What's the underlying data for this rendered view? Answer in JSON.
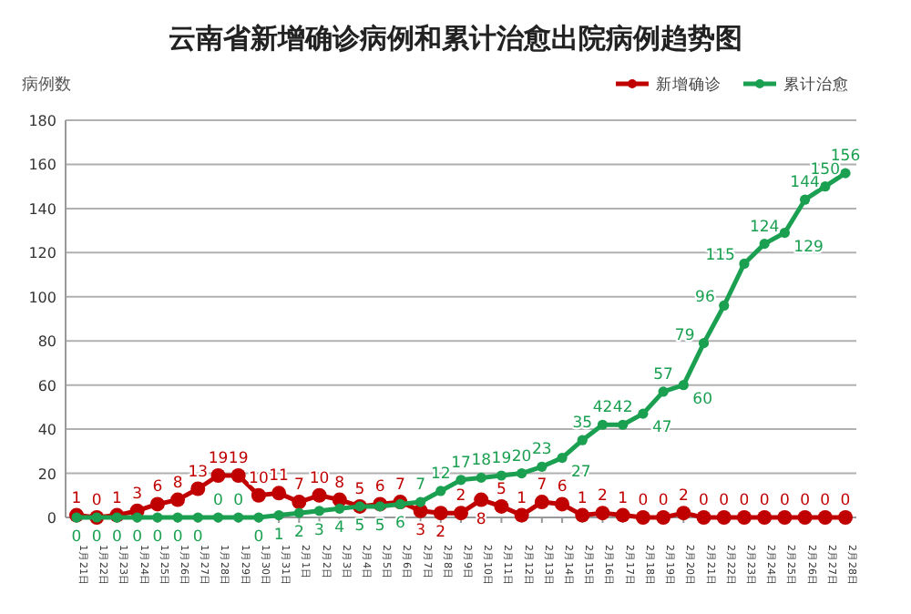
{
  "chart_data": {
    "type": "line",
    "title": "云南省新增确诊病例和累计治愈出院病例趋势图",
    "ylabel": "病例数",
    "categories": [
      "1月21日",
      "1月22日",
      "1月23日",
      "1月24日",
      "1月25日",
      "1月26日",
      "1月27日",
      "1月28日",
      "1月29日",
      "1月30日",
      "1月31日",
      "2月1日",
      "2月2日",
      "2月3日",
      "2月4日",
      "2月5日",
      "2月6日",
      "2月7日",
      "2月8日",
      "2月9日",
      "2月10日",
      "2月11日",
      "2月12日",
      "2月13日",
      "2月14日",
      "2月15日",
      "2月16日",
      "2月17日",
      "2月18日",
      "2月19日",
      "2月20日",
      "2月21日",
      "2月22日",
      "2月23日",
      "2月24日",
      "2月25日",
      "2月26日",
      "2月27日",
      "2月28日"
    ],
    "series": [
      {
        "name": "新增确诊",
        "color": "#c00000",
        "values": [
          1,
          0,
          1,
          3,
          6,
          8,
          13,
          19,
          19,
          10,
          11,
          7,
          10,
          8,
          5,
          6,
          7,
          3,
          2,
          2,
          8,
          5,
          1,
          7,
          6,
          1,
          2,
          1,
          0,
          0,
          2,
          0,
          0,
          0,
          0,
          0,
          0,
          0,
          0
        ]
      },
      {
        "name": "累计治愈",
        "color": "#1aa050",
        "values": [
          0,
          0,
          0,
          0,
          0,
          0,
          0,
          0,
          0,
          0,
          1,
          2,
          3,
          4,
          5,
          5,
          6,
          7,
          12,
          17,
          18,
          19,
          20,
          23,
          27,
          35,
          42,
          42,
          47,
          57,
          60,
          79,
          96,
          115,
          124,
          129,
          144,
          150,
          156
        ]
      }
    ],
    "ylim": [
      0,
      180
    ],
    "yticks": [
      0,
      20,
      40,
      60,
      80,
      100,
      120,
      140,
      160,
      180
    ],
    "grid": "y",
    "legend": "top right",
    "marker": "circle",
    "data_labels": true
  }
}
